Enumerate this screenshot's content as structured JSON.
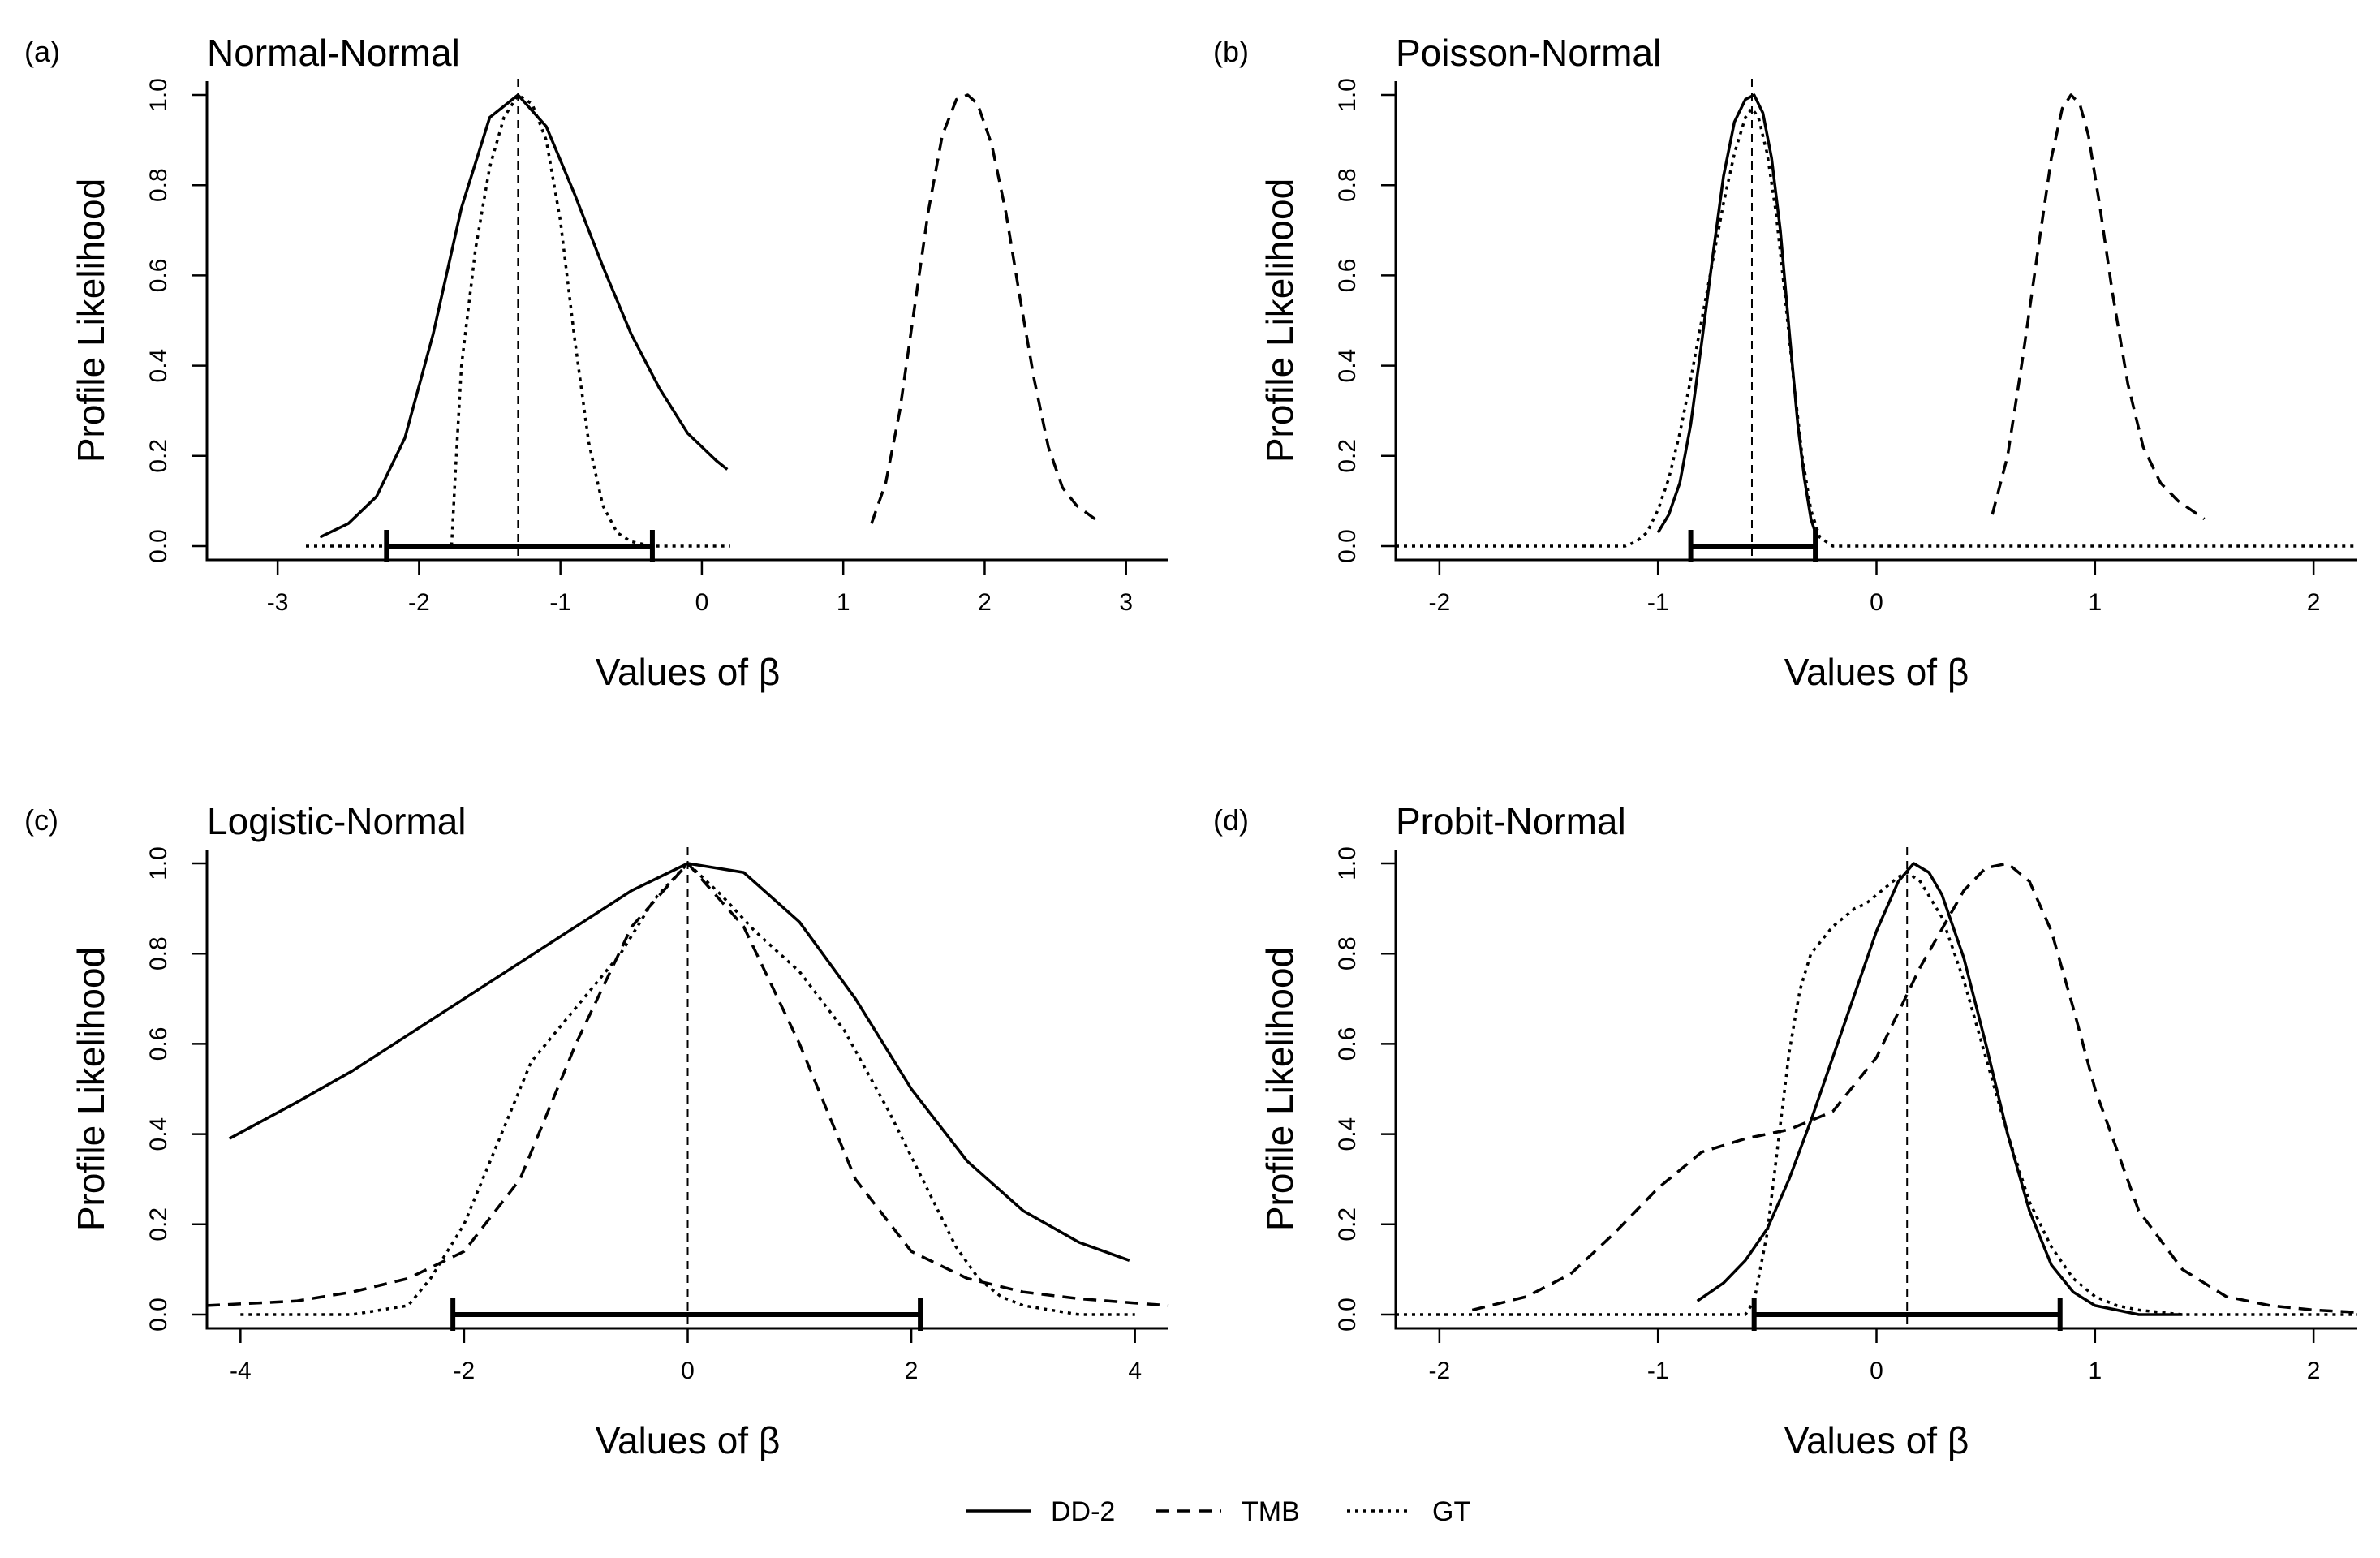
{
  "legend": {
    "items": [
      {
        "label": "DD-2",
        "dash": "solid"
      },
      {
        "label": "TMB",
        "dash": "dashed"
      },
      {
        "label": "GT",
        "dash": "dotted"
      }
    ]
  },
  "chart_data": [
    {
      "panel": "(a)",
      "title": "Normal-Normal",
      "type": "line",
      "xlabel": "Values of β",
      "ylabel": "Profile Likelihood",
      "xlim": [
        -3.5,
        3.3
      ],
      "ylim": [
        0,
        1
      ],
      "xticks": [
        -3,
        -2,
        -1,
        0,
        1,
        2,
        3
      ],
      "xtick_labels": [
        "-3",
        "-2",
        "-1",
        "0",
        "1",
        "2",
        "3"
      ],
      "yticks": [
        0,
        0.2,
        0.4,
        0.6,
        0.8,
        1.0
      ],
      "ytick_labels": [
        "0.0",
        "0.2",
        "0.4",
        "0.6",
        "0.8",
        "1.0"
      ],
      "vline": -1.3,
      "interval": [
        -2.23,
        -0.35
      ],
      "series": [
        {
          "name": "DD-2",
          "dash": "solid",
          "x": [
            -2.7,
            -2.5,
            -2.3,
            -2.1,
            -1.9,
            -1.7,
            -1.5,
            -1.3,
            -1.1,
            -0.9,
            -0.7,
            -0.5,
            -0.3,
            -0.1,
            0.1,
            0.18
          ],
          "y": [
            0.02,
            0.05,
            0.11,
            0.24,
            0.47,
            0.75,
            0.95,
            1.0,
            0.93,
            0.78,
            0.62,
            0.47,
            0.35,
            0.25,
            0.19,
            0.17
          ]
        },
        {
          "name": "TMB",
          "dash": "dashed",
          "x": [
            1.2,
            1.3,
            1.4,
            1.5,
            1.6,
            1.7,
            1.8,
            1.88,
            1.95,
            2.05,
            2.15,
            2.25,
            2.35,
            2.45,
            2.55,
            2.65,
            2.78
          ],
          "y": [
            0.05,
            0.14,
            0.3,
            0.52,
            0.74,
            0.91,
            0.99,
            1.0,
            0.98,
            0.89,
            0.74,
            0.55,
            0.37,
            0.22,
            0.13,
            0.09,
            0.06
          ]
        },
        {
          "name": "GT",
          "dash": "dotted",
          "x": [
            -2.8,
            -2.3,
            -1.9,
            -1.77,
            -1.74,
            -1.7,
            -1.6,
            -1.5,
            -1.4,
            -1.3,
            -1.2,
            -1.1,
            -1.0,
            -0.9,
            -0.8,
            -0.7,
            -0.6,
            -0.5,
            -0.35,
            -0.1,
            0.2
          ],
          "y": [
            0,
            0,
            0,
            0,
            0.18,
            0.4,
            0.66,
            0.84,
            0.95,
            1.0,
            0.98,
            0.9,
            0.72,
            0.46,
            0.23,
            0.09,
            0.03,
            0.01,
            0,
            0,
            0
          ]
        }
      ]
    },
    {
      "panel": "(b)",
      "title": "Poisson-Normal",
      "type": "line",
      "xlabel": "Values of β",
      "ylabel": "Profile Likelihood",
      "xlim": [
        -2.2,
        2.2
      ],
      "ylim": [
        0,
        1
      ],
      "xticks": [
        -2,
        -1,
        0,
        1,
        2
      ],
      "xtick_labels": [
        "-2",
        "-1",
        "0",
        "1",
        "2"
      ],
      "yticks": [
        0,
        0.2,
        0.4,
        0.6,
        0.8,
        1.0
      ],
      "ytick_labels": [
        "0.0",
        "0.2",
        "0.4",
        "0.6",
        "0.8",
        "1.0"
      ],
      "vline": -0.57,
      "interval": [
        -0.85,
        -0.28
      ],
      "series": [
        {
          "name": "DD-2",
          "dash": "solid",
          "x": [
            -1.0,
            -0.95,
            -0.9,
            -0.85,
            -0.8,
            -0.75,
            -0.7,
            -0.65,
            -0.6,
            -0.56,
            -0.52,
            -0.48,
            -0.44,
            -0.4,
            -0.36,
            -0.33,
            -0.3,
            -0.28
          ],
          "y": [
            0.03,
            0.07,
            0.14,
            0.27,
            0.45,
            0.64,
            0.82,
            0.94,
            0.99,
            1.0,
            0.96,
            0.86,
            0.7,
            0.48,
            0.27,
            0.15,
            0.06,
            0.03
          ]
        },
        {
          "name": "TMB",
          "dash": "dashed",
          "x": [
            0.53,
            0.6,
            0.67,
            0.74,
            0.8,
            0.85,
            0.89,
            0.93,
            0.97,
            1.02,
            1.08,
            1.15,
            1.22,
            1.3,
            1.38,
            1.5
          ],
          "y": [
            0.07,
            0.2,
            0.42,
            0.66,
            0.86,
            0.97,
            1.0,
            0.98,
            0.91,
            0.76,
            0.56,
            0.36,
            0.22,
            0.14,
            0.1,
            0.06
          ]
        },
        {
          "name": "GT",
          "dash": "dotted",
          "x": [
            -2.2,
            -1.5,
            -1.15,
            -1.1,
            -1.05,
            -1.0,
            -0.95,
            -0.9,
            -0.85,
            -0.8,
            -0.75,
            -0.7,
            -0.65,
            -0.6,
            -0.57,
            -0.54,
            -0.5,
            -0.46,
            -0.42,
            -0.38,
            -0.34,
            -0.3,
            -0.26,
            -0.2,
            0.5,
            2.2
          ],
          "y": [
            0,
            0,
            0,
            0.01,
            0.03,
            0.08,
            0.15,
            0.25,
            0.37,
            0.5,
            0.63,
            0.76,
            0.87,
            0.95,
            0.97,
            0.95,
            0.87,
            0.74,
            0.56,
            0.37,
            0.2,
            0.08,
            0.02,
            0,
            0,
            0
          ]
        }
      ]
    },
    {
      "panel": "(c)",
      "title": "Logistic-Normal",
      "type": "line",
      "xlabel": "Values of β",
      "ylabel": "Profile Likelihood",
      "xlim": [
        -4.3,
        4.3
      ],
      "ylim": [
        0,
        1
      ],
      "xticks": [
        -4,
        -2,
        0,
        2,
        4
      ],
      "xtick_labels": [
        "-4",
        "-2",
        "0",
        "2",
        "4"
      ],
      "yticks": [
        0,
        0.2,
        0.4,
        0.6,
        0.8,
        1.0
      ],
      "ytick_labels": [
        "0.0",
        "0.2",
        "0.4",
        "0.6",
        "0.8",
        "1.0"
      ],
      "vline": 0,
      "interval": [
        -2.1,
        2.08
      ],
      "series": [
        {
          "name": "DD-2",
          "dash": "solid",
          "x": [
            -4.1,
            -3.5,
            -3.0,
            -2.5,
            -2.0,
            -1.5,
            -1.0,
            -0.5,
            0.0,
            0.5,
            1.0,
            1.5,
            2.0,
            2.5,
            3.0,
            3.5,
            3.95
          ],
          "y": [
            0.39,
            0.47,
            0.54,
            0.62,
            0.7,
            0.78,
            0.86,
            0.94,
            1.0,
            0.98,
            0.87,
            0.7,
            0.5,
            0.34,
            0.23,
            0.16,
            0.12
          ]
        },
        {
          "name": "TMB",
          "dash": "dashed",
          "x": [
            -4.3,
            -3.5,
            -3.0,
            -2.5,
            -2.0,
            -1.5,
            -1.0,
            -0.5,
            0.0,
            0.5,
            1.0,
            1.5,
            2.0,
            2.5,
            3.0,
            3.5,
            4.3
          ],
          "y": [
            0.02,
            0.03,
            0.05,
            0.08,
            0.14,
            0.3,
            0.6,
            0.86,
            1.0,
            0.86,
            0.6,
            0.3,
            0.14,
            0.08,
            0.05,
            0.035,
            0.02
          ]
        },
        {
          "name": "GT",
          "dash": "dotted",
          "x": [
            -4.0,
            -3.0,
            -2.5,
            -2.3,
            -2.0,
            -1.7,
            -1.4,
            -1.0,
            -0.6,
            -0.3,
            0.0,
            0.3,
            0.6,
            1.0,
            1.4,
            1.8,
            2.2,
            2.4,
            2.6,
            2.8,
            3.0,
            3.5,
            4.0
          ],
          "y": [
            0,
            0,
            0.02,
            0.08,
            0.2,
            0.38,
            0.56,
            0.68,
            0.8,
            0.92,
            1.0,
            0.93,
            0.85,
            0.76,
            0.63,
            0.45,
            0.25,
            0.15,
            0.08,
            0.04,
            0.02,
            0,
            0
          ]
        }
      ]
    },
    {
      "panel": "(d)",
      "title": "Probit-Normal",
      "type": "line",
      "xlabel": "Values of β",
      "ylabel": "Profile Likelihood",
      "xlim": [
        -2.2,
        2.2
      ],
      "ylim": [
        0,
        1
      ],
      "xticks": [
        -2,
        -1,
        0,
        1,
        2
      ],
      "xtick_labels": [
        "-2",
        "-1",
        "0",
        "1",
        "2"
      ],
      "yticks": [
        0,
        0.2,
        0.4,
        0.6,
        0.8,
        1.0
      ],
      "ytick_labels": [
        "0.0",
        "0.2",
        "0.4",
        "0.6",
        "0.8",
        "1.0"
      ],
      "vline": 0.14,
      "interval": [
        -0.56,
        0.84
      ],
      "series": [
        {
          "name": "DD-2",
          "dash": "solid",
          "x": [
            -0.82,
            -0.7,
            -0.6,
            -0.5,
            -0.4,
            -0.3,
            -0.2,
            -0.1,
            0.0,
            0.1,
            0.17,
            0.24,
            0.3,
            0.4,
            0.5,
            0.6,
            0.7,
            0.8,
            0.9,
            1.0,
            1.1,
            1.2,
            1.3,
            1.4
          ],
          "y": [
            0.03,
            0.07,
            0.12,
            0.19,
            0.3,
            0.43,
            0.57,
            0.71,
            0.85,
            0.96,
            1.0,
            0.98,
            0.93,
            0.79,
            0.6,
            0.4,
            0.23,
            0.11,
            0.05,
            0.02,
            0.01,
            0,
            0,
            0
          ]
        },
        {
          "name": "TMB",
          "dash": "dashed",
          "x": [
            -1.85,
            -1.6,
            -1.4,
            -1.2,
            -1.0,
            -0.8,
            -0.6,
            -0.4,
            -0.2,
            0.0,
            0.2,
            0.4,
            0.5,
            0.6,
            0.7,
            0.8,
            0.9,
            1.0,
            1.2,
            1.4,
            1.6,
            1.8,
            2.0,
            2.2
          ],
          "y": [
            0.01,
            0.04,
            0.09,
            0.18,
            0.28,
            0.36,
            0.39,
            0.41,
            0.45,
            0.57,
            0.77,
            0.94,
            0.99,
            1.0,
            0.96,
            0.85,
            0.68,
            0.5,
            0.23,
            0.1,
            0.04,
            0.02,
            0.01,
            0.005
          ]
        },
        {
          "name": "GT",
          "dash": "dotted",
          "x": [
            -2.2,
            -1.0,
            -0.6,
            -0.56,
            -0.5,
            -0.45,
            -0.4,
            -0.35,
            -0.3,
            -0.25,
            -0.2,
            -0.15,
            -0.1,
            -0.05,
            0.0,
            0.05,
            0.1,
            0.14,
            0.2,
            0.3,
            0.4,
            0.5,
            0.6,
            0.7,
            0.8,
            0.9,
            1.0,
            1.1,
            1.2,
            1.4,
            1.6,
            2.2
          ],
          "y": [
            0,
            0,
            0,
            0.03,
            0.18,
            0.38,
            0.58,
            0.72,
            0.8,
            0.83,
            0.86,
            0.88,
            0.9,
            0.91,
            0.93,
            0.95,
            0.97,
            0.98,
            0.96,
            0.88,
            0.74,
            0.57,
            0.4,
            0.25,
            0.15,
            0.08,
            0.04,
            0.02,
            0.01,
            0,
            0,
            0
          ]
        }
      ]
    }
  ]
}
